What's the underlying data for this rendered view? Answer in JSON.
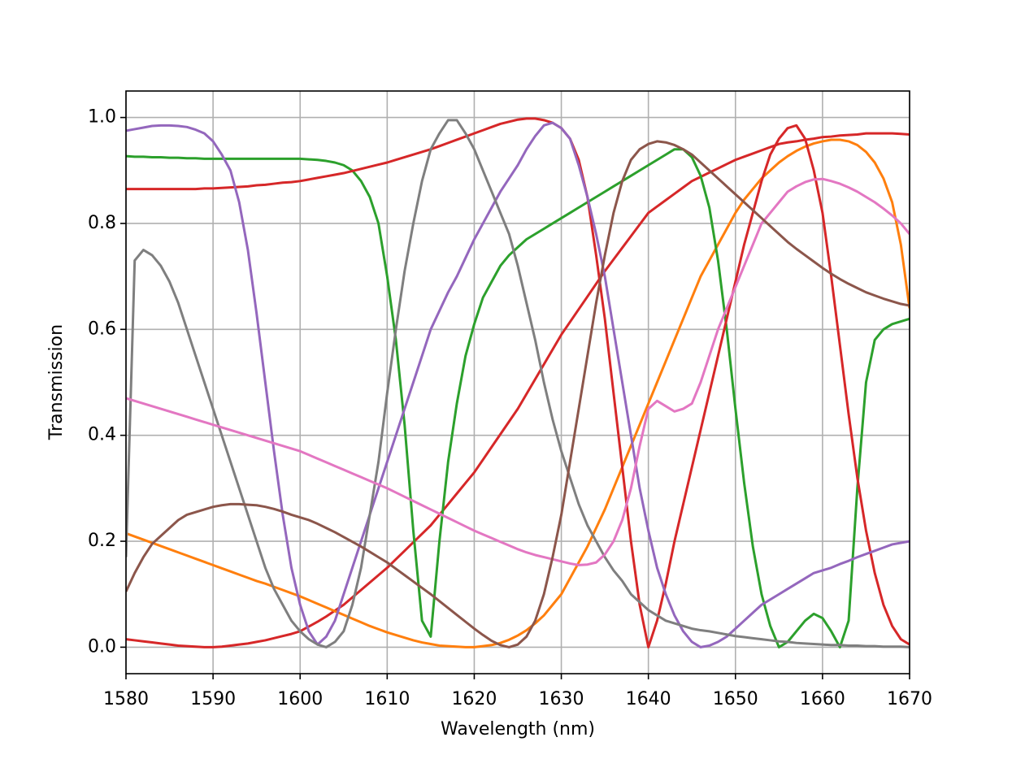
{
  "chart_data": {
    "type": "line",
    "xlabel": "Wavelength (nm)",
    "ylabel": "Transmission",
    "x": [
      1580,
      1581,
      1582,
      1583,
      1584,
      1585,
      1586,
      1587,
      1588,
      1589,
      1590,
      1591,
      1592,
      1593,
      1594,
      1595,
      1596,
      1597,
      1598,
      1599,
      1600,
      1601,
      1602,
      1603,
      1604,
      1605,
      1606,
      1607,
      1608,
      1609,
      1610,
      1611,
      1612,
      1613,
      1614,
      1615,
      1616,
      1617,
      1618,
      1619,
      1620,
      1621,
      1622,
      1623,
      1624,
      1625,
      1626,
      1627,
      1628,
      1629,
      1630,
      1631,
      1632,
      1633,
      1634,
      1635,
      1636,
      1637,
      1638,
      1639,
      1640,
      1641,
      1642,
      1643,
      1644,
      1645,
      1646,
      1647,
      1648,
      1649,
      1650,
      1651,
      1652,
      1653,
      1654,
      1655,
      1656,
      1657,
      1658,
      1659,
      1660,
      1661,
      1662,
      1663,
      1664,
      1665,
      1666,
      1667,
      1668,
      1669,
      1670
    ],
    "series": [
      {
        "color": "#d62728",
        "values": [
          0.015,
          0.013,
          0.011,
          0.009,
          0.007,
          0.005,
          0.003,
          0.002,
          0.001,
          0,
          0,
          0.001,
          0.003,
          0.005,
          0.007,
          0.01,
          0.013,
          0.017,
          0.021,
          0.025,
          0.03,
          0.039,
          0.048,
          0.058,
          0.069,
          0.08,
          0.094,
          0.108,
          0.122,
          0.136,
          0.15,
          0.166,
          0.182,
          0.198,
          0.214,
          0.23,
          0.25,
          0.27,
          0.29,
          0.31,
          0.33,
          0.354,
          0.378,
          0.402,
          0.426,
          0.45,
          0.478,
          0.506,
          0.534,
          0.562,
          0.59,
          0.614,
          0.638,
          0.662,
          0.686,
          0.71,
          0.732,
          0.754,
          0.776,
          0.798,
          0.82,
          0.832,
          0.844,
          0.856,
          0.868,
          0.88,
          0.888,
          0.896,
          0.904,
          0.912,
          0.92,
          0.926,
          0.932,
          0.938,
          0.944,
          0.95,
          0.953,
          0.955,
          0.958,
          0.96,
          0.963,
          0.964,
          0.966,
          0.967,
          0.968,
          0.97,
          0.97,
          0.97,
          0.97,
          0.969,
          0.968
        ]
      },
      {
        "color": "#ff7f0e",
        "values": [
          0.215,
          0.209,
          0.203,
          0.197,
          0.191,
          0.185,
          0.179,
          0.173,
          0.167,
          0.161,
          0.155,
          0.149,
          0.143,
          0.137,
          0.131,
          0.125,
          0.12,
          0.114,
          0.108,
          0.102,
          0.096,
          0.089,
          0.082,
          0.075,
          0.068,
          0.061,
          0.054,
          0.047,
          0.04,
          0.034,
          0.028,
          0.023,
          0.018,
          0.013,
          0.009,
          0.006,
          0.003,
          0.002,
          0.001,
          0,
          0,
          0.002,
          0.004,
          0.008,
          0.014,
          0.022,
          0.032,
          0.045,
          0.06,
          0.08,
          0.1,
          0.13,
          0.16,
          0.19,
          0.225,
          0.26,
          0.3,
          0.34,
          0.38,
          0.42,
          0.46,
          0.5,
          0.54,
          0.58,
          0.62,
          0.66,
          0.7,
          0.73,
          0.76,
          0.79,
          0.82,
          0.845,
          0.865,
          0.885,
          0.9,
          0.915,
          0.927,
          0.937,
          0.945,
          0.951,
          0.955,
          0.958,
          0.958,
          0.955,
          0.948,
          0.935,
          0.915,
          0.885,
          0.84,
          0.76,
          0.64
        ]
      },
      {
        "color": "#2ca02c",
        "values": [
          0.927,
          0.926,
          0.926,
          0.925,
          0.925,
          0.924,
          0.924,
          0.923,
          0.923,
          0.922,
          0.922,
          0.922,
          0.922,
          0.922,
          0.922,
          0.922,
          0.922,
          0.922,
          0.922,
          0.922,
          0.922,
          0.921,
          0.92,
          0.918,
          0.915,
          0.91,
          0.9,
          0.88,
          0.85,
          0.8,
          0.7,
          0.58,
          0.42,
          0.22,
          0.05,
          0.02,
          0.2,
          0.35,
          0.46,
          0.55,
          0.61,
          0.66,
          0.69,
          0.72,
          0.74,
          0.755,
          0.77,
          0.78,
          0.79,
          0.8,
          0.81,
          0.82,
          0.83,
          0.84,
          0.85,
          0.86,
          0.87,
          0.88,
          0.89,
          0.9,
          0.91,
          0.92,
          0.93,
          0.94,
          0.94,
          0.925,
          0.89,
          0.83,
          0.73,
          0.6,
          0.45,
          0.31,
          0.19,
          0.1,
          0.04,
          0,
          0.01,
          0.03,
          0.05,
          0.063,
          0.055,
          0.03,
          0,
          0.05,
          0.3,
          0.5,
          0.58,
          0.6,
          0.61,
          0.615,
          0.62
        ]
      },
      {
        "color": "#d62728",
        "values": [
          0.865,
          0.865,
          0.865,
          0.865,
          0.865,
          0.865,
          0.865,
          0.865,
          0.865,
          0.866,
          0.866,
          0.867,
          0.868,
          0.869,
          0.87,
          0.872,
          0.873,
          0.875,
          0.877,
          0.878,
          0.88,
          0.883,
          0.886,
          0.889,
          0.892,
          0.895,
          0.899,
          0.903,
          0.907,
          0.911,
          0.915,
          0.92,
          0.925,
          0.93,
          0.935,
          0.94,
          0.946,
          0.952,
          0.958,
          0.964,
          0.97,
          0.976,
          0.982,
          0.988,
          0.992,
          0.996,
          0.998,
          0.998,
          0.995,
          0.99,
          0.98,
          0.96,
          0.92,
          0.85,
          0.74,
          0.62,
          0.48,
          0.34,
          0.2,
          0.08,
          0,
          0.05,
          0.12,
          0.2,
          0.27,
          0.34,
          0.41,
          0.48,
          0.55,
          0.62,
          0.69,
          0.76,
          0.82,
          0.88,
          0.93,
          0.96,
          0.98,
          0.985,
          0.96,
          0.9,
          0.82,
          0.7,
          0.57,
          0.44,
          0.32,
          0.22,
          0.14,
          0.08,
          0.04,
          0.015,
          0.005
        ]
      },
      {
        "color": "#9467bd",
        "values": [
          0.975,
          0.978,
          0.981,
          0.984,
          0.985,
          0.985,
          0.984,
          0.982,
          0.977,
          0.97,
          0.955,
          0.93,
          0.9,
          0.84,
          0.75,
          0.63,
          0.5,
          0.37,
          0.25,
          0.15,
          0.08,
          0.03,
          0.005,
          0.02,
          0.05,
          0.1,
          0.15,
          0.2,
          0.25,
          0.3,
          0.35,
          0.4,
          0.45,
          0.5,
          0.55,
          0.6,
          0.635,
          0.67,
          0.7,
          0.735,
          0.77,
          0.8,
          0.83,
          0.86,
          0.885,
          0.91,
          0.94,
          0.965,
          0.985,
          0.99,
          0.98,
          0.96,
          0.91,
          0.85,
          0.78,
          0.7,
          0.6,
          0.5,
          0.4,
          0.3,
          0.22,
          0.15,
          0.1,
          0.06,
          0.03,
          0.01,
          0,
          0.003,
          0.01,
          0.02,
          0.035,
          0.05,
          0.065,
          0.08,
          0.09,
          0.1,
          0.11,
          0.12,
          0.13,
          0.14,
          0.145,
          0.15,
          0.157,
          0.163,
          0.17,
          0.176,
          0.182,
          0.188,
          0.194,
          0.197,
          0.2
        ]
      },
      {
        "color": "#7f7f7f",
        "values": [
          0.17,
          0.73,
          0.75,
          0.74,
          0.72,
          0.69,
          0.65,
          0.6,
          0.55,
          0.5,
          0.45,
          0.4,
          0.35,
          0.3,
          0.25,
          0.2,
          0.15,
          0.11,
          0.08,
          0.05,
          0.03,
          0.015,
          0.005,
          0,
          0.01,
          0.03,
          0.08,
          0.15,
          0.25,
          0.35,
          0.48,
          0.6,
          0.71,
          0.8,
          0.88,
          0.94,
          0.97,
          0.995,
          0.995,
          0.97,
          0.94,
          0.9,
          0.86,
          0.82,
          0.78,
          0.72,
          0.65,
          0.58,
          0.5,
          0.43,
          0.37,
          0.32,
          0.27,
          0.23,
          0.2,
          0.17,
          0.145,
          0.125,
          0.1,
          0.085,
          0.07,
          0.06,
          0.05,
          0.045,
          0.04,
          0.035,
          0.032,
          0.03,
          0.027,
          0.024,
          0.021,
          0.019,
          0.017,
          0.015,
          0.013,
          0.011,
          0.01,
          0.008,
          0.007,
          0.006,
          0.005,
          0.004,
          0.004,
          0.003,
          0.003,
          0.002,
          0.002,
          0.001,
          0.001,
          0.001,
          0
        ]
      },
      {
        "color": "#e377c2",
        "values": [
          0.47,
          0.465,
          0.46,
          0.455,
          0.45,
          0.445,
          0.44,
          0.435,
          0.43,
          0.425,
          0.42,
          0.415,
          0.41,
          0.405,
          0.4,
          0.395,
          0.39,
          0.385,
          0.38,
          0.375,
          0.37,
          0.363,
          0.356,
          0.349,
          0.342,
          0.335,
          0.328,
          0.321,
          0.314,
          0.307,
          0.3,
          0.292,
          0.284,
          0.276,
          0.268,
          0.26,
          0.252,
          0.244,
          0.236,
          0.228,
          0.22,
          0.213,
          0.206,
          0.199,
          0.192,
          0.185,
          0.179,
          0.174,
          0.17,
          0.166,
          0.162,
          0.158,
          0.155,
          0.156,
          0.16,
          0.175,
          0.2,
          0.24,
          0.3,
          0.38,
          0.45,
          0.465,
          0.455,
          0.445,
          0.45,
          0.46,
          0.5,
          0.55,
          0.6,
          0.64,
          0.68,
          0.72,
          0.76,
          0.8,
          0.82,
          0.84,
          0.86,
          0.87,
          0.878,
          0.883,
          0.884,
          0.88,
          0.875,
          0.868,
          0.86,
          0.85,
          0.84,
          0.828,
          0.815,
          0.8,
          0.78
        ]
      },
      {
        "color": "#8c564b",
        "values": [
          0.105,
          0.14,
          0.17,
          0.195,
          0.21,
          0.225,
          0.24,
          0.25,
          0.255,
          0.26,
          0.265,
          0.268,
          0.27,
          0.27,
          0.269,
          0.268,
          0.265,
          0.261,
          0.256,
          0.25,
          0.245,
          0.24,
          0.233,
          0.225,
          0.217,
          0.208,
          0.199,
          0.19,
          0.18,
          0.17,
          0.16,
          0.148,
          0.136,
          0.124,
          0.112,
          0.1,
          0.087,
          0.074,
          0.061,
          0.048,
          0.035,
          0.023,
          0.012,
          0.004,
          0,
          0.005,
          0.02,
          0.05,
          0.1,
          0.17,
          0.25,
          0.35,
          0.45,
          0.55,
          0.65,
          0.74,
          0.82,
          0.88,
          0.92,
          0.94,
          0.95,
          0.955,
          0.953,
          0.948,
          0.94,
          0.93,
          0.915,
          0.9,
          0.885,
          0.87,
          0.855,
          0.84,
          0.825,
          0.81,
          0.795,
          0.78,
          0.765,
          0.752,
          0.74,
          0.728,
          0.716,
          0.705,
          0.695,
          0.686,
          0.678,
          0.67,
          0.664,
          0.658,
          0.653,
          0.648,
          0.645
        ]
      }
    ],
    "xlim": [
      1580,
      1670
    ],
    "xticks": [
      1580,
      1590,
      1600,
      1610,
      1620,
      1630,
      1640,
      1650,
      1660,
      1670
    ],
    "ylim": [
      -0.05,
      1.05
    ],
    "yticks": [
      {
        "value": 0,
        "label": "0.0"
      },
      0.2,
      0.4,
      0.6,
      0.8,
      {
        "value": 1,
        "label": "1.0"
      }
    ],
    "grid": true
  }
}
